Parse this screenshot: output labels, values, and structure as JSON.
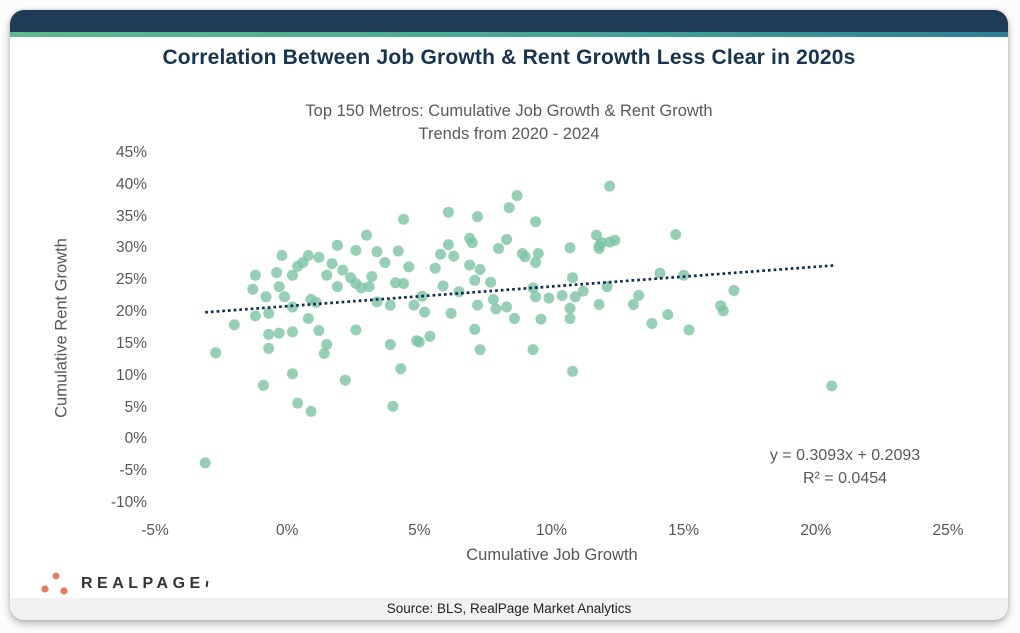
{
  "title": "Correlation Between Job Growth & Rent Growth Less Clear in 2020s",
  "header": {
    "bar_color": "#1e3a54",
    "gradient_left": "#5fba8c",
    "gradient_mid": "#46a795",
    "gradient_right": "#2f7e95"
  },
  "chart_data": {
    "type": "scatter",
    "subtitle_line1": "Top 150 Metros: Cumulative Job Growth & Rent Growth",
    "subtitle_line2": "Trends from 2020 - 2024",
    "xlabel": "Cumulative Job Growth",
    "ylabel": "Cumulative Rent Growth",
    "x_ticks": [
      "-5%",
      "0%",
      "5%",
      "10%",
      "15%",
      "20%",
      "25%"
    ],
    "y_ticks": [
      "45%",
      "40%",
      "35%",
      "30%",
      "25%",
      "20%",
      "15%",
      "10%",
      "5%",
      "0%",
      "-5%",
      "-10%"
    ],
    "xlim": [
      -5,
      25
    ],
    "ylim": [
      -10,
      45
    ],
    "grid": false,
    "point_color": "#7cc3a4",
    "trendline": {
      "slope": 0.3093,
      "intercept": 0.2093,
      "x_start": -3.1,
      "x_end": 20.7,
      "color": "#0e2d52",
      "style": "dotted",
      "equation_label": "y = 0.3093x + 0.2093",
      "r_squared_label": "R² = 0.0454"
    },
    "points": [
      [
        -3.1,
        -3.7
      ],
      [
        -2.7,
        13.6
      ],
      [
        -2.0,
        18.0
      ],
      [
        -1.3,
        23.6
      ],
      [
        -1.2,
        25.8
      ],
      [
        -1.2,
        19.4
      ],
      [
        -0.9,
        8.5
      ],
      [
        -0.8,
        22.4
      ],
      [
        -0.7,
        19.8
      ],
      [
        -0.7,
        16.5
      ],
      [
        -0.7,
        14.3
      ],
      [
        -0.4,
        26.2
      ],
      [
        -0.3,
        24.0
      ],
      [
        -0.3,
        16.7
      ],
      [
        -0.2,
        28.9
      ],
      [
        -0.1,
        22.4
      ],
      [
        0.2,
        25.8
      ],
      [
        0.2,
        20.8
      ],
      [
        0.2,
        16.9
      ],
      [
        0.2,
        10.3
      ],
      [
        0.4,
        27.2
      ],
      [
        0.4,
        5.7
      ],
      [
        0.6,
        27.8
      ],
      [
        0.8,
        28.9
      ],
      [
        0.8,
        19.0
      ],
      [
        0.9,
        22.0
      ],
      [
        0.9,
        4.4
      ],
      [
        1.1,
        21.5
      ],
      [
        1.2,
        28.6
      ],
      [
        1.2,
        17.1
      ],
      [
        1.4,
        13.5
      ],
      [
        1.5,
        25.8
      ],
      [
        1.5,
        14.9
      ],
      [
        1.7,
        27.6
      ],
      [
        1.9,
        30.5
      ],
      [
        1.9,
        24.0
      ],
      [
        2.1,
        26.6
      ],
      [
        2.2,
        9.3
      ],
      [
        2.4,
        25.4
      ],
      [
        2.6,
        29.7
      ],
      [
        2.6,
        24.5
      ],
      [
        2.6,
        17.2
      ],
      [
        2.8,
        23.8
      ],
      [
        3.0,
        32.1
      ],
      [
        3.1,
        24.0
      ],
      [
        3.2,
        25.6
      ],
      [
        3.4,
        29.5
      ],
      [
        3.4,
        21.6
      ],
      [
        3.7,
        27.8
      ],
      [
        3.9,
        21.1
      ],
      [
        3.9,
        14.9
      ],
      [
        4.0,
        5.2
      ],
      [
        4.1,
        24.6
      ],
      [
        4.2,
        29.6
      ],
      [
        4.3,
        11.1
      ],
      [
        4.4,
        34.6
      ],
      [
        4.4,
        24.5
      ],
      [
        4.6,
        27.1
      ],
      [
        4.8,
        21.1
      ],
      [
        4.9,
        15.5
      ],
      [
        5.1,
        22.5
      ],
      [
        5.2,
        20.0
      ],
      [
        5.4,
        16.2
      ],
      [
        5.0,
        15.3
      ],
      [
        5.6,
        26.9
      ],
      [
        5.8,
        29.1
      ],
      [
        5.9,
        24.1
      ],
      [
        6.1,
        35.7
      ],
      [
        6.1,
        30.6
      ],
      [
        6.2,
        19.8
      ],
      [
        6.3,
        28.8
      ],
      [
        6.5,
        23.2
      ],
      [
        6.9,
        31.6
      ],
      [
        6.9,
        27.4
      ],
      [
        7.0,
        30.9
      ],
      [
        7.1,
        25.0
      ],
      [
        7.1,
        17.3
      ],
      [
        7.2,
        35.0
      ],
      [
        7.2,
        21.1
      ],
      [
        7.3,
        26.7
      ],
      [
        7.3,
        14.1
      ],
      [
        7.7,
        24.7
      ],
      [
        7.8,
        22.0
      ],
      [
        7.9,
        20.5
      ],
      [
        8.0,
        30.0
      ],
      [
        8.3,
        31.4
      ],
      [
        8.3,
        20.8
      ],
      [
        8.4,
        36.4
      ],
      [
        8.6,
        19.0
      ],
      [
        8.7,
        38.3
      ],
      [
        8.9,
        29.2
      ],
      [
        9.0,
        28.7
      ],
      [
        9.3,
        23.8
      ],
      [
        9.3,
        14.1
      ],
      [
        9.4,
        34.2
      ],
      [
        9.4,
        27.8
      ],
      [
        9.4,
        22.4
      ],
      [
        9.5,
        29.2
      ],
      [
        9.6,
        18.9
      ],
      [
        9.9,
        22.2
      ],
      [
        10.4,
        22.6
      ],
      [
        10.7,
        30.1
      ],
      [
        10.7,
        20.6
      ],
      [
        10.7,
        19.0
      ],
      [
        10.8,
        25.4
      ],
      [
        10.8,
        10.7
      ],
      [
        10.9,
        22.4
      ],
      [
        11.2,
        23.3
      ],
      [
        11.7,
        32.1
      ],
      [
        11.8,
        30.4
      ],
      [
        11.8,
        30.0
      ],
      [
        11.8,
        21.2
      ],
      [
        11.9,
        30.9
      ],
      [
        12.1,
        24.0
      ],
      [
        12.2,
        39.8
      ],
      [
        12.2,
        31.0
      ],
      [
        12.4,
        31.3
      ],
      [
        13.1,
        21.2
      ],
      [
        13.3,
        22.6
      ],
      [
        13.8,
        18.2
      ],
      [
        14.1,
        26.1
      ],
      [
        14.4,
        19.6
      ],
      [
        14.7,
        32.2
      ],
      [
        15.0,
        25.8
      ],
      [
        15.2,
        17.2
      ],
      [
        16.4,
        21.0
      ],
      [
        16.5,
        20.2
      ],
      [
        16.9,
        23.4
      ],
      [
        20.6,
        8.4
      ]
    ]
  },
  "footer": {
    "logo_text": "REALPAGE",
    "logo_dot_color": "#e97a5f",
    "source_text": "Source: BLS, RealPage Market Analytics"
  }
}
